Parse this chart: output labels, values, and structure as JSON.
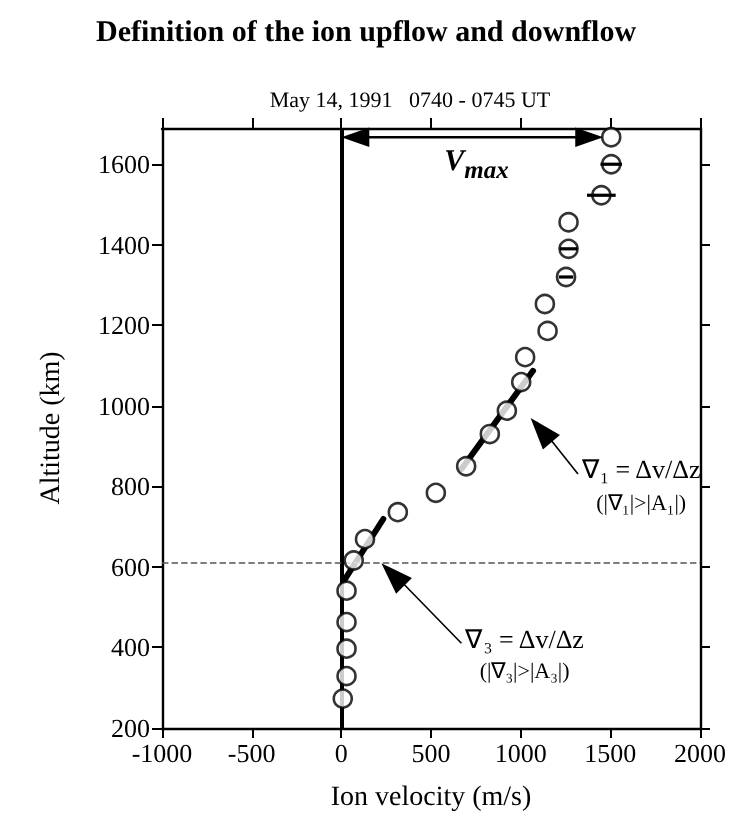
{
  "chart_data": {
    "type": "scatter",
    "title": "Definition of the ion upflow and downflow",
    "subtitle": "May 14, 1991   0740 - 0745 UT",
    "xlabel": "Ion velocity (m/s)",
    "ylabel": "Altitude (km)",
    "xlim": [
      -1000,
      2000
    ],
    "xticks": [
      -1000,
      -500,
      0,
      500,
      1000,
      1500,
      2000
    ],
    "ylim": [
      200,
      1690
    ],
    "yticks": [
      200,
      400,
      600,
      800,
      1000,
      1200,
      1400,
      1600
    ],
    "series": [
      {
        "color": "#000000",
        "marker": "circle",
        "x": [
          1505,
          1505,
          1450,
          1267,
          1267,
          1253,
          1135,
          1150,
          1025,
          1003,
          923,
          828,
          696,
          527,
          315,
          132,
          69,
          29,
          29,
          29,
          29,
          8
        ],
        "values": [
          1667,
          1600,
          1523,
          1456,
          1390,
          1320,
          1253,
          1186,
          1121,
          1059,
          988,
          930,
          850,
          784,
          736,
          669,
          616,
          541,
          463,
          397,
          329,
          273
        ],
        "xerrors": [
          null,
          60,
          80,
          null,
          50,
          40,
          null,
          null,
          null,
          null,
          null,
          null,
          null,
          null,
          null,
          null,
          null,
          null,
          null,
          null,
          null,
          null
        ]
      },
      {
        "type": "line",
        "color": "#000000",
        "marker": "none",
        "line_style": "solid",
        "x": [
          670,
          1069
        ],
        "values": [
          843,
          1087
        ]
      },
      {
        "type": "line",
        "color": "#000000",
        "marker": "none",
        "line_style": "solid",
        "x": [
          15,
          234
        ],
        "values": [
          566,
          719
        ]
      }
    ],
    "ref_lines": [
      {
        "axis": "x",
        "value": 0,
        "color": "#000000",
        "line_style": "solid"
      },
      {
        "axis": "y",
        "value": 610,
        "color": "#555555",
        "line_style": "dashed"
      }
    ],
    "annotations": [
      "V$_{max}$",
      {
        "text": "∇₁ = Δv/Δz\n(|∇₁|>|A₁|)",
        "x": 1022,
        "y": 980
      },
      {
        "text": "∇₃ = Δv/Δz\n(|∇₃|>|A₃|)",
        "x": 190,
        "y": 619
      }
    ],
    "grid": false
  }
}
